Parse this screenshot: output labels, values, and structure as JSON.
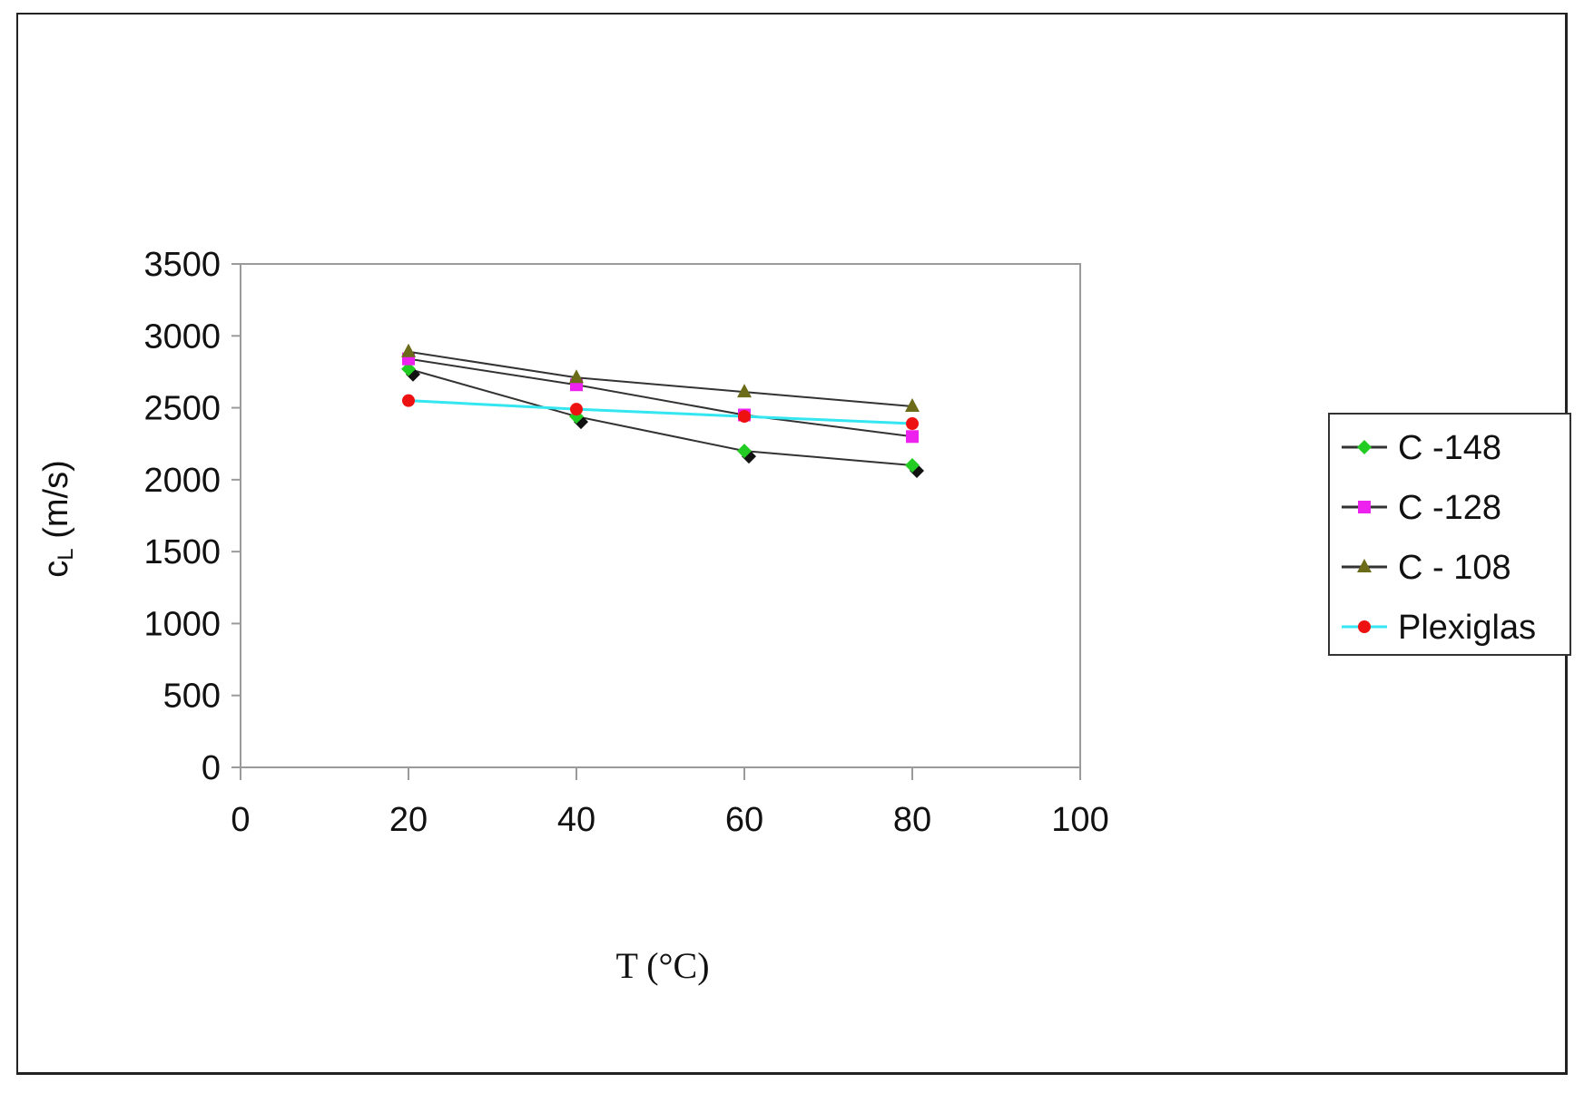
{
  "chart_data": {
    "type": "line",
    "title": "",
    "xlabel": "T (°C)",
    "ylabel_main": "c",
    "ylabel_sub": "L",
    "ylabel_rest": " (m/s)",
    "xlim": [
      0,
      100
    ],
    "ylim": [
      0,
      3500
    ],
    "xticks": [
      0,
      20,
      40,
      60,
      80,
      100
    ],
    "yticks": [
      0,
      500,
      1000,
      1500,
      2000,
      2500,
      3000,
      3500
    ],
    "grid": false,
    "legend_position": "right",
    "x": [
      20,
      40,
      60,
      80
    ],
    "series": [
      {
        "name": "C -148",
        "values": [
          2770,
          2440,
          2200,
          2100
        ],
        "line_color": "#333333",
        "marker": "diamond",
        "marker_color": "#22cc22"
      },
      {
        "name": "C -128",
        "values": [
          2840,
          2660,
          2450,
          2300
        ],
        "line_color": "#333333",
        "marker": "square",
        "marker_color": "#ee22ee"
      },
      {
        "name": "C - 108",
        "values": [
          2890,
          2710,
          2610,
          2510
        ],
        "line_color": "#333333",
        "marker": "triangle",
        "marker_color": "#6b6b1a"
      },
      {
        "name": "Plexiglas",
        "values": [
          2550,
          2490,
          2440,
          2390
        ],
        "line_color": "#33e6f0",
        "marker": "circle",
        "marker_color": "#ee1111"
      }
    ]
  }
}
